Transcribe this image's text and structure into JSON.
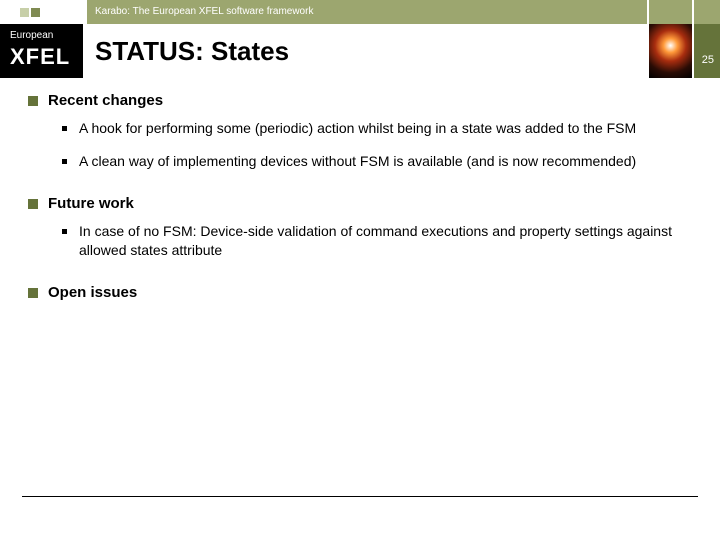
{
  "header": {
    "subtitle": "Karabo: The European XFEL software framework",
    "title": "STATUS: States",
    "page_number": "25",
    "logo": {
      "top_text": "European",
      "bottom_text": "XFEL"
    }
  },
  "colors": {
    "olive_light": "#9ca66f",
    "olive_dark": "#65733a",
    "olive_pale": "#c7cfa8",
    "text": "#000000",
    "bg": "#ffffff"
  },
  "sections": [
    {
      "title": "Recent changes",
      "items": [
        "A hook for performing some (periodic) action whilst being in a state was added to the FSM",
        "A clean way of implementing devices without FSM is available (and is now recommended)"
      ]
    },
    {
      "title": "Future work",
      "items": [
        "In case of no FSM: Device-side validation of command executions and property settings against allowed states attribute"
      ]
    },
    {
      "title": "Open issues",
      "items": []
    }
  ]
}
